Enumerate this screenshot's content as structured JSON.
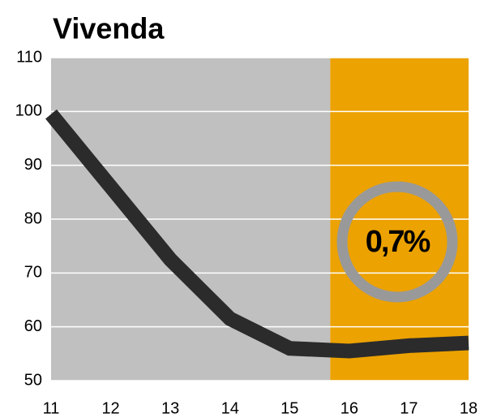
{
  "chart_data": {
    "type": "line",
    "title": "Vivenda",
    "x": [
      11,
      12,
      13,
      14,
      15,
      16,
      17,
      18
    ],
    "series": [
      {
        "color": "#2b2b2b",
        "values": [
          99.5,
          86,
          72.5,
          61.5,
          56,
          55.5,
          56.5,
          57
        ]
      }
    ],
    "xlim": [
      11,
      18
    ],
    "xticks": [
      11,
      12,
      13,
      14,
      15,
      16,
      17,
      18
    ],
    "ylim": [
      50,
      110
    ],
    "yticks": [
      50,
      60,
      70,
      80,
      90,
      100,
      110
    ],
    "grid": true,
    "shaded_regions": [
      {
        "xlim": [
          11,
          15.68
        ],
        "color": "#c0c0c0"
      },
      {
        "xlim": [
          15.68,
          18
        ],
        "color": "#eca200"
      }
    ],
    "annotation": {
      "text": "0,7%",
      "ring_color": "#999999"
    }
  }
}
